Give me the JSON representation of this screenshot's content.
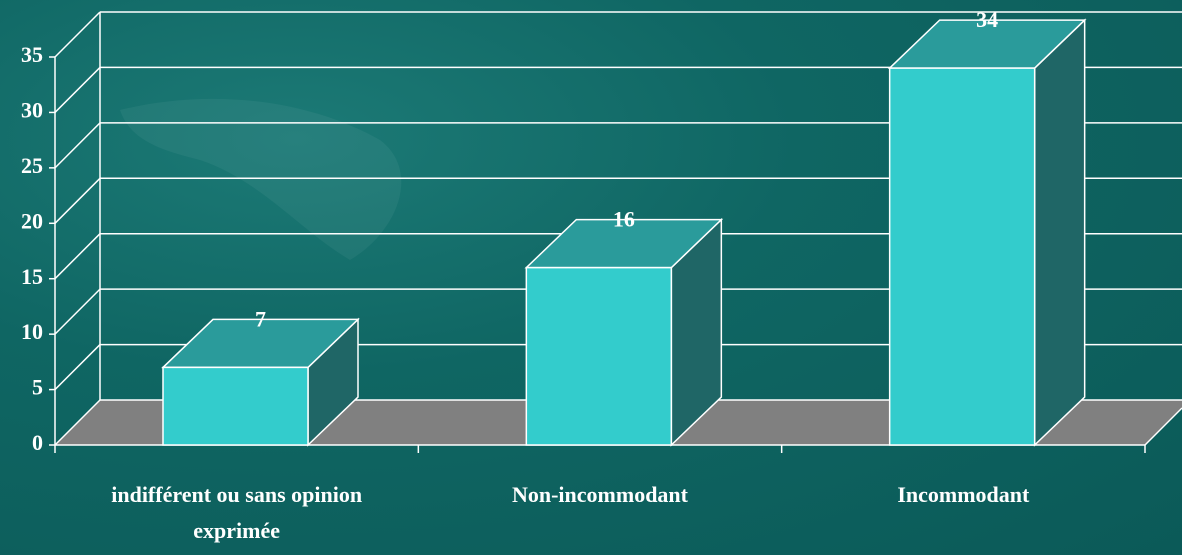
{
  "chart_data": {
    "type": "bar3d",
    "categories": [
      "indifférent ou sans opinion exprimée",
      "Non-incommodant",
      "Incommodant"
    ],
    "values": [
      7,
      16,
      34
    ],
    "color": "#33cccc",
    "ylim": [
      0,
      35
    ],
    "yticks": [
      0,
      5,
      10,
      15,
      20,
      25,
      30,
      35
    ],
    "grid": true
  }
}
